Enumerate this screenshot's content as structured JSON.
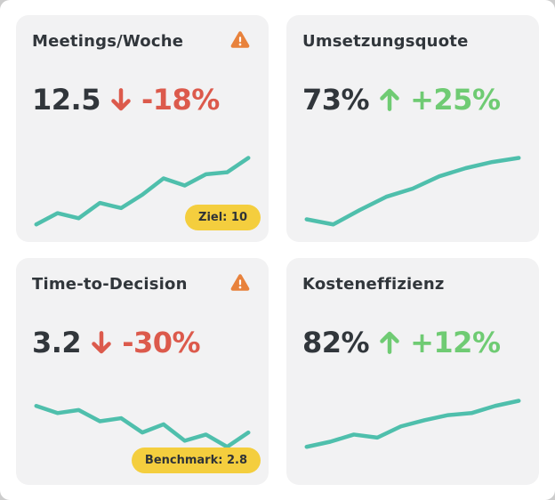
{
  "colors": {
    "teal": "#4FBFAC",
    "red": "#DC5A4C",
    "green": "#6FCB73",
    "orange": "#E8823C",
    "yellow": "#F4CE3E",
    "dark": "#31363B",
    "card_bg": "#F2F2F3",
    "page_bg": "#FFFFFF"
  },
  "cards": [
    {
      "title": "Meetings/Woche",
      "warning_icon": "warning-triangle",
      "value": "12.5",
      "trend_direction": "down",
      "trend_arrow": "↓",
      "change": "-18%",
      "badge": "Ziel: 10"
    },
    {
      "title": "Umsetzungsquote",
      "warning_icon": null,
      "value": "73%",
      "trend_direction": "up",
      "trend_arrow": "↑",
      "change": "+25%",
      "badge": null
    },
    {
      "title": "Time-to-Decision",
      "warning_icon": "warning-triangle",
      "value": "3.2",
      "trend_direction": "down",
      "trend_arrow": "↓",
      "change": "-30%",
      "badge": "Benchmark: 2.8"
    },
    {
      "title": "Kosteneffizienz",
      "warning_icon": null,
      "value": "82%",
      "trend_direction": "up",
      "trend_arrow": "↑",
      "change": "+12%",
      "badge": null
    }
  ],
  "chart_data": [
    {
      "type": "line",
      "title": "Meetings/Woche sparkline",
      "values": [
        5,
        16,
        11,
        26,
        21,
        34,
        50,
        43,
        54,
        56,
        70
      ],
      "unit": "relative-trend",
      "color": "#4FBFAC",
      "axes": "none",
      "grid": false
    },
    {
      "type": "line",
      "title": "Umsetzungsquote sparkline",
      "values": [
        10,
        5,
        19,
        32,
        40,
        52,
        60,
        66,
        70
      ],
      "unit": "relative-trend",
      "color": "#4FBFAC",
      "axes": "none",
      "grid": false
    },
    {
      "type": "line",
      "title": "Time-to-Decision sparkline",
      "values": [
        65,
        58,
        61,
        50,
        53,
        39,
        47,
        31,
        37,
        25,
        39
      ],
      "unit": "relative-trend",
      "color": "#4FBFAC",
      "axes": "none",
      "grid": false
    },
    {
      "type": "line",
      "title": "Kosteneffizienz sparkline",
      "values": [
        25,
        30,
        37,
        34,
        45,
        51,
        56,
        58,
        65,
        70
      ],
      "unit": "relative-trend",
      "color": "#4FBFAC",
      "axes": "none",
      "grid": false
    }
  ]
}
